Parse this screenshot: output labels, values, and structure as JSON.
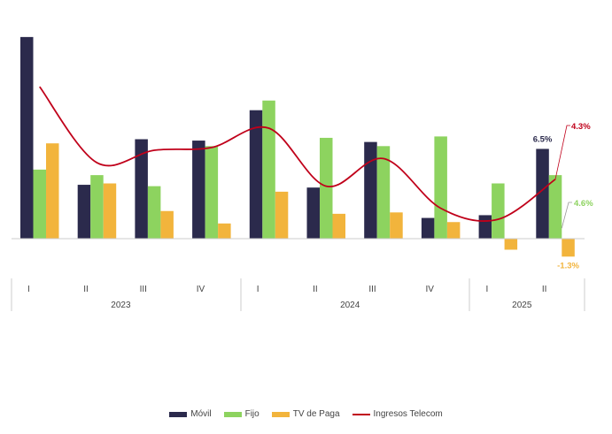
{
  "chart_data": {
    "type": "bar",
    "title": "",
    "xlabel": "",
    "ylabel": "",
    "ylim": [
      -2.0,
      16.0
    ],
    "categories": [
      "I",
      "II",
      "III",
      "IV",
      "I",
      "II",
      "III",
      "IV",
      "I",
      "II"
    ],
    "groups": [
      {
        "label": "2023",
        "span": 4
      },
      {
        "label": "2024",
        "span": 4
      },
      {
        "label": "2025",
        "span": 2
      }
    ],
    "series": [
      {
        "name": "Móvil",
        "type": "bar",
        "color": "#2b2a4c",
        "values": [
          14.6,
          3.9,
          7.2,
          7.1,
          9.3,
          3.7,
          7.0,
          1.5,
          1.7,
          6.5
        ]
      },
      {
        "name": "Fijo",
        "type": "bar",
        "color": "#8dd35f",
        "values": [
          5.0,
          4.6,
          3.8,
          6.7,
          10.0,
          7.3,
          6.7,
          7.4,
          4.0,
          4.6
        ]
      },
      {
        "name": "TV de Paga",
        "type": "bar",
        "color": "#f2b43c",
        "values": [
          6.9,
          4.0,
          2.0,
          1.1,
          3.4,
          1.8,
          1.9,
          1.2,
          -0.8,
          -1.3
        ]
      },
      {
        "name": "Ingresos Telecom",
        "type": "line",
        "color": "#c0001a",
        "values": [
          11.0,
          5.5,
          6.4,
          6.6,
          8.0,
          3.8,
          5.8,
          2.2,
          1.4,
          4.3
        ]
      }
    ],
    "annotations": [
      {
        "text": "6.5%",
        "series": "Móvil",
        "index": 9,
        "color": "#2b2a4c"
      },
      {
        "text": "4.3%",
        "series": "Ingresos Telecom",
        "index": 9,
        "color": "#c0001a"
      },
      {
        "text": "4.6%",
        "series": "Fijo",
        "index": 9,
        "color": "#8dd35f"
      },
      {
        "text": "-1.3%",
        "series": "TV de Paga",
        "index": 9,
        "color": "#f2b43c"
      }
    ],
    "grid": false,
    "legend": "bottom-center"
  }
}
